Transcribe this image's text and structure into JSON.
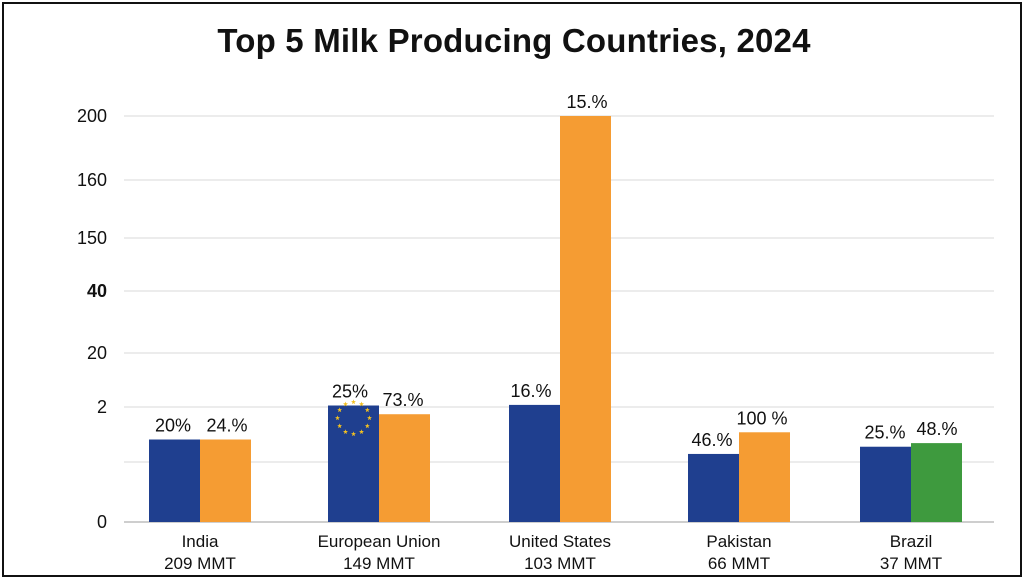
{
  "title": "Top 5 Milk Producing Countries, 2024",
  "colors": {
    "blue": "#1f3f8f",
    "orange": "#f59c33",
    "green": "#3e9a3e",
    "grid": "#d9d9d9",
    "star": "#f2c021"
  },
  "chart_data": {
    "type": "bar",
    "title": "Top 5 Milk Producing Countries, 2024",
    "xlabel": "",
    "ylabel": "",
    "y_ticks": [
      "200",
      "160",
      "150",
      "40",
      "20",
      "2",
      "0"
    ],
    "grid": true,
    "legend": "none",
    "categories": [
      {
        "name": "India",
        "sub": "209 MMT"
      },
      {
        "name": "European Union",
        "sub": "149 MMT"
      },
      {
        "name": "United States",
        "sub": "103 MMT"
      },
      {
        "name": "Pakistan",
        "sub": "66 MMT"
      },
      {
        "name": "Brazil",
        "sub": "37 MMT"
      }
    ],
    "series": [
      {
        "values": [
          1.1,
          2.5,
          2.7,
          0.7,
          0.9
        ],
        "labels": [
          "20%",
          "25%",
          "16.%",
          "46.%",
          "25.%"
        ]
      },
      {
        "values": [
          1.1,
          1.8,
          200,
          1.3,
          1.0
        ],
        "labels": [
          "24.%",
          "73.%",
          "15.%",
          "100 %",
          "48.%"
        ]
      }
    ],
    "bar_colors": [
      [
        "blue",
        "blue",
        "blue",
        "blue",
        "blue"
      ],
      [
        "orange",
        "orange",
        "orange",
        "orange",
        "green"
      ]
    ],
    "emblem": "eu-flag-stars"
  }
}
